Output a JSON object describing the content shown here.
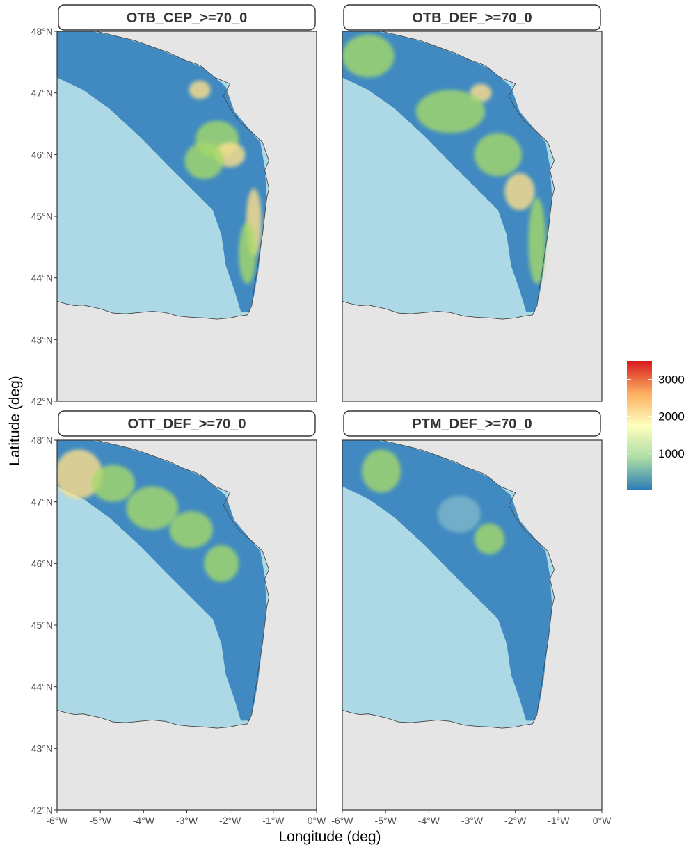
{
  "figure": {
    "xlabel": "Longitude (deg)",
    "ylabel": "Latitude (deg)",
    "x_ticks": [
      "-6°W",
      "-5°W",
      "-4°W",
      "-3°W",
      "-2°W",
      "-1°W",
      "0°W"
    ],
    "y_ticks": [
      "48°N",
      "47°N",
      "46°N",
      "45°N",
      "44°N",
      "43°N",
      "42°N"
    ],
    "x_range": [
      -6,
      0
    ],
    "y_range": [
      42,
      48
    ],
    "panels": [
      {
        "title": "OTB_CEP_>=70_0"
      },
      {
        "title": "OTB_DEF_>=70_0"
      },
      {
        "title": "OTT_DEF_>=70_0"
      },
      {
        "title": "PTM_DEF_>=70_0"
      }
    ]
  },
  "legend": {
    "ticks": [
      "3000",
      "2000",
      "1000"
    ],
    "tick_values": [
      3000,
      2000,
      1000
    ],
    "min": 0,
    "max": 3500,
    "colors": [
      "#2c7bb6",
      "#abdda4",
      "#ffffbf",
      "#fdae61",
      "#d7191c"
    ]
  },
  "colors": {
    "land": "#e5e5e5",
    "sea": "#add8e6",
    "effort_low": "#3a86bf",
    "effort_mid": "#a6d96a",
    "effort_high": "#fee08b",
    "strip_bg": "#ffffff",
    "panel_border": "#333333"
  }
}
